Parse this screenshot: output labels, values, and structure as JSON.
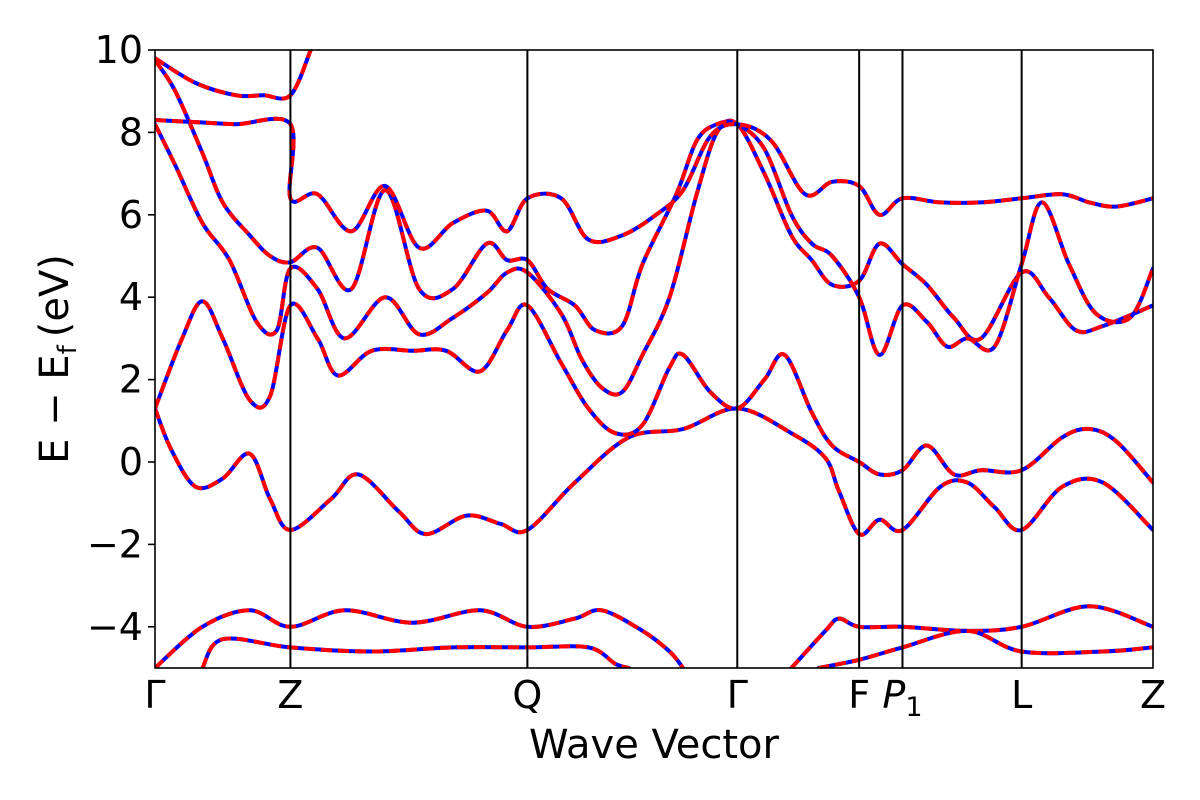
{
  "chart_data": {
    "type": "line",
    "xlabel": "Wave Vector",
    "ylabel_main": "E − E",
    "ylabel_sub": "f",
    "ylabel_unit": "(eV)",
    "ylim": [
      -5,
      10
    ],
    "yticks": [
      "−4",
      "−2",
      "0",
      "2",
      "4",
      "6",
      "8",
      "10"
    ],
    "ytick_values": [
      -4,
      -2,
      0,
      2,
      4,
      6,
      8,
      10
    ],
    "kpath": [
      {
        "label": "Γ",
        "sub": "",
        "italic": false,
        "x": 0.0
      },
      {
        "label": "Z",
        "sub": "",
        "italic": false,
        "x": 1.0
      },
      {
        "label": "Q",
        "sub": "",
        "italic": false,
        "x": 2.75
      },
      {
        "label": "Γ",
        "sub": "",
        "italic": false,
        "x": 4.3
      },
      {
        "label": "F",
        "sub": "",
        "italic": false,
        "x": 5.2
      },
      {
        "label": "P",
        "sub": "1",
        "italic": true,
        "x": 5.52
      },
      {
        "label": "L",
        "sub": "",
        "italic": false,
        "x": 6.4
      },
      {
        "label": "Z",
        "sub": "",
        "italic": false,
        "x": 7.37
      }
    ],
    "grid": false,
    "colors": {
      "solid": "#0000ff",
      "dashed": "#ff0000"
    },
    "series": [
      {
        "values": [
          [
            0,
            1.3
          ],
          [
            0.12,
            0.3
          ],
          [
            0.3,
            -0.6
          ],
          [
            0.5,
            -0.4
          ],
          [
            0.7,
            0.2
          ],
          [
            0.85,
            -0.9
          ],
          [
            1.0,
            -1.65
          ],
          [
            1.3,
            -0.9
          ],
          [
            1.5,
            -0.3
          ],
          [
            1.8,
            -1.2
          ],
          [
            2.0,
            -1.75
          ],
          [
            2.3,
            -1.3
          ],
          [
            2.55,
            -1.5
          ],
          [
            2.75,
            -1.65
          ],
          [
            3.1,
            -0.5
          ],
          [
            3.5,
            0.6
          ],
          [
            3.9,
            0.8
          ],
          [
            4.3,
            1.3
          ],
          [
            4.7,
            0.7
          ],
          [
            4.95,
            0.1
          ],
          [
            5.05,
            -0.7
          ],
          [
            5.2,
            -1.75
          ],
          [
            5.35,
            -1.4
          ],
          [
            5.52,
            -1.65
          ],
          [
            5.8,
            -0.6
          ],
          [
            6.0,
            -0.5
          ],
          [
            6.2,
            -1.1
          ],
          [
            6.4,
            -1.65
          ],
          [
            6.7,
            -0.6
          ],
          [
            7.0,
            -0.5
          ],
          [
            7.37,
            -1.65
          ]
        ]
      },
      {
        "values": [
          [
            0,
            1.3
          ],
          [
            0.2,
            3.0
          ],
          [
            0.35,
            3.9
          ],
          [
            0.5,
            3.0
          ],
          [
            0.7,
            1.5
          ],
          [
            0.85,
            1.6
          ],
          [
            1.0,
            3.8
          ],
          [
            1.2,
            3.0
          ],
          [
            1.35,
            2.1
          ],
          [
            1.6,
            2.7
          ],
          [
            1.9,
            2.7
          ],
          [
            2.15,
            2.7
          ],
          [
            2.4,
            2.2
          ],
          [
            2.6,
            3.2
          ],
          [
            2.75,
            3.8
          ],
          [
            3.0,
            2.4
          ],
          [
            3.2,
            1.3
          ],
          [
            3.4,
            0.7
          ],
          [
            3.6,
            0.9
          ],
          [
            3.8,
            2.3
          ],
          [
            3.9,
            2.6
          ],
          [
            4.1,
            1.7
          ],
          [
            4.3,
            1.3
          ],
          [
            4.5,
            2.0
          ],
          [
            4.65,
            2.6
          ],
          [
            4.85,
            1.2
          ],
          [
            5.0,
            0.4
          ],
          [
            5.2,
            0.0
          ],
          [
            5.35,
            -0.3
          ],
          [
            5.52,
            -0.2
          ],
          [
            5.7,
            0.4
          ],
          [
            5.9,
            -0.3
          ],
          [
            6.1,
            -0.2
          ],
          [
            6.4,
            -0.2
          ],
          [
            6.7,
            0.6
          ],
          [
            6.9,
            0.8
          ],
          [
            7.1,
            0.5
          ],
          [
            7.37,
            -0.5
          ]
        ]
      },
      {
        "values": [
          [
            0,
            8.2
          ],
          [
            0.15,
            7.2
          ],
          [
            0.35,
            5.8
          ],
          [
            0.55,
            4.9
          ],
          [
            0.75,
            3.4
          ],
          [
            0.9,
            3.2
          ],
          [
            1.0,
            4.7
          ],
          [
            1.2,
            4.2
          ],
          [
            1.4,
            3.0
          ],
          [
            1.7,
            4.0
          ],
          [
            1.95,
            3.1
          ],
          [
            2.2,
            3.5
          ],
          [
            2.45,
            4.1
          ],
          [
            2.6,
            4.6
          ],
          [
            2.75,
            4.6
          ],
          [
            3.0,
            3.6
          ],
          [
            3.15,
            2.5
          ],
          [
            3.3,
            1.8
          ],
          [
            3.45,
            1.7
          ],
          [
            3.6,
            2.6
          ],
          [
            3.8,
            4.0
          ],
          [
            4.0,
            6.5
          ],
          [
            4.15,
            8.0
          ],
          [
            4.3,
            8.2
          ],
          [
            4.5,
            7.0
          ],
          [
            4.7,
            5.5
          ],
          [
            4.85,
            4.9
          ],
          [
            5.0,
            4.3
          ],
          [
            5.2,
            4.4
          ],
          [
            5.35,
            5.3
          ],
          [
            5.52,
            4.8
          ],
          [
            5.7,
            4.3
          ],
          [
            5.9,
            3.5
          ],
          [
            6.1,
            3.0
          ],
          [
            6.4,
            4.6
          ],
          [
            6.6,
            4.0
          ],
          [
            6.8,
            3.2
          ],
          [
            7.0,
            3.3
          ],
          [
            7.37,
            3.8
          ]
        ]
      },
      {
        "values": [
          [
            0,
            9.75
          ],
          [
            0.15,
            9.0
          ],
          [
            0.35,
            7.5
          ],
          [
            0.5,
            6.3
          ],
          [
            0.7,
            5.5
          ],
          [
            0.85,
            5.0
          ],
          [
            1.0,
            4.85
          ],
          [
            1.2,
            5.2
          ],
          [
            1.45,
            4.2
          ],
          [
            1.7,
            6.6
          ],
          [
            1.95,
            4.2
          ],
          [
            2.2,
            4.2
          ],
          [
            2.45,
            5.3
          ],
          [
            2.6,
            4.9
          ],
          [
            2.75,
            4.9
          ],
          [
            2.9,
            4.2
          ],
          [
            3.1,
            3.8
          ],
          [
            3.25,
            3.2
          ],
          [
            3.45,
            3.3
          ],
          [
            3.6,
            4.8
          ],
          [
            3.85,
            6.5
          ],
          [
            4.0,
            7.8
          ],
          [
            4.15,
            8.2
          ],
          [
            4.3,
            8.2
          ],
          [
            4.5,
            7.6
          ],
          [
            4.7,
            6.0
          ],
          [
            4.85,
            5.3
          ],
          [
            5.0,
            5.0
          ],
          [
            5.2,
            4.0
          ],
          [
            5.35,
            2.6
          ],
          [
            5.52,
            3.8
          ],
          [
            5.7,
            3.4
          ],
          [
            5.85,
            2.8
          ],
          [
            6.0,
            3.0
          ],
          [
            6.2,
            2.8
          ],
          [
            6.4,
            4.8
          ],
          [
            6.55,
            6.3
          ],
          [
            6.75,
            4.8
          ],
          [
            6.95,
            3.6
          ],
          [
            7.2,
            3.5
          ],
          [
            7.37,
            4.7
          ]
        ]
      },
      {
        "values": [
          [
            0,
            8.3
          ],
          [
            0.3,
            8.25
          ],
          [
            0.6,
            8.2
          ],
          [
            1.0,
            8.2
          ],
          [
            1.0,
            6.4
          ],
          [
            1.2,
            6.5
          ],
          [
            1.45,
            5.6
          ],
          [
            1.7,
            6.7
          ],
          [
            1.95,
            5.2
          ],
          [
            2.2,
            5.8
          ],
          [
            2.45,
            6.1
          ],
          [
            2.6,
            5.6
          ],
          [
            2.75,
            6.4
          ],
          [
            3.0,
            6.4
          ],
          [
            3.2,
            5.4
          ],
          [
            3.45,
            5.5
          ],
          [
            3.7,
            6.0
          ],
          [
            3.9,
            6.6
          ],
          [
            4.1,
            7.9
          ],
          [
            4.3,
            8.2
          ],
          [
            4.55,
            7.8
          ],
          [
            4.8,
            6.5
          ],
          [
            5.0,
            6.8
          ],
          [
            5.2,
            6.7
          ],
          [
            5.35,
            6.0
          ],
          [
            5.52,
            6.4
          ],
          [
            5.8,
            6.3
          ],
          [
            6.1,
            6.3
          ],
          [
            6.4,
            6.4
          ],
          [
            6.7,
            6.5
          ],
          [
            6.9,
            6.3
          ],
          [
            7.1,
            6.2
          ],
          [
            7.37,
            6.4
          ]
        ]
      },
      {
        "values": [
          [
            0,
            9.8
          ],
          [
            0.3,
            9.2
          ],
          [
            0.6,
            8.9
          ],
          [
            0.8,
            8.9
          ],
          [
            1.0,
            8.9
          ],
          [
            1.15,
            10.0
          ]
        ]
      },
      {
        "values": [
          [
            0.0,
            -5.0
          ],
          [
            0.35,
            -4.0
          ],
          [
            0.7,
            -3.6
          ],
          [
            1.0,
            -4.0
          ],
          [
            1.4,
            -3.6
          ],
          [
            1.9,
            -3.9
          ],
          [
            2.4,
            -3.6
          ],
          [
            2.75,
            -4.0
          ],
          [
            3.1,
            -3.8
          ],
          [
            3.3,
            -3.6
          ],
          [
            3.6,
            -4.1
          ],
          [
            3.8,
            -4.6
          ],
          [
            3.9,
            -5.0
          ]
        ]
      },
      {
        "values": [
          [
            0.35,
            -5.0
          ],
          [
            0.5,
            -4.3
          ],
          [
            1.0,
            -4.5
          ],
          [
            1.6,
            -4.6
          ],
          [
            2.2,
            -4.5
          ],
          [
            2.75,
            -4.5
          ],
          [
            3.2,
            -4.5
          ],
          [
            3.4,
            -4.9
          ],
          [
            3.5,
            -5.0
          ]
        ]
      },
      {
        "values": [
          [
            4.7,
            -5.0
          ],
          [
            4.95,
            -4.1
          ],
          [
            5.05,
            -3.8
          ],
          [
            5.2,
            -4.0
          ],
          [
            5.52,
            -4.0
          ],
          [
            6.0,
            -4.1
          ],
          [
            6.4,
            -4.0
          ],
          [
            6.9,
            -3.5
          ],
          [
            7.37,
            -4.0
          ]
        ]
      },
      {
        "values": [
          [
            4.9,
            -5.0
          ],
          [
            5.2,
            -4.8
          ],
          [
            5.52,
            -4.5
          ],
          [
            6.0,
            -4.1
          ],
          [
            6.4,
            -4.6
          ],
          [
            7.0,
            -4.6
          ],
          [
            7.37,
            -4.5
          ]
        ]
      }
    ]
  }
}
